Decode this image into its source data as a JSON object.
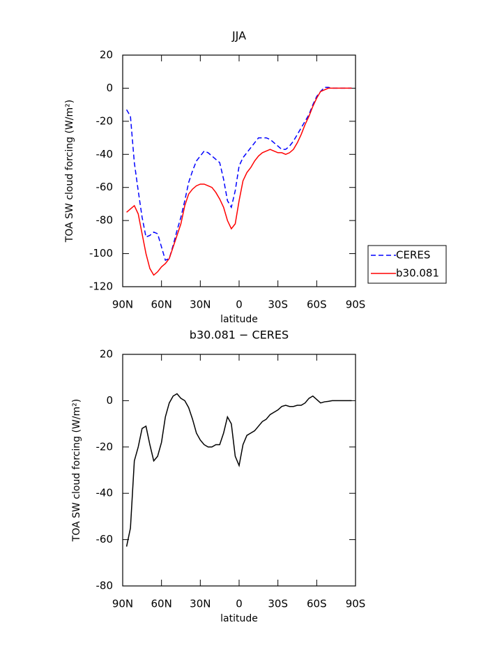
{
  "chart_data": [
    {
      "type": "line",
      "title": "JJA",
      "x_label": "latitude",
      "y_label": "TOA SW cloud forcing (W/m²)",
      "x": [
        87,
        84,
        81,
        78,
        75,
        72,
        69,
        66,
        63,
        60,
        57,
        54,
        51,
        48,
        45,
        42,
        39,
        36,
        33,
        30,
        27,
        24,
        21,
        18,
        15,
        12,
        9,
        6,
        3,
        0,
        -3,
        -6,
        -9,
        -12,
        -15,
        -18,
        -21,
        -24,
        -27,
        -30,
        -33,
        -36,
        -39,
        -42,
        -45,
        -48,
        -51,
        -54,
        -57,
        -60,
        -63,
        -66,
        -69,
        -72,
        -75,
        -78,
        -81,
        -84,
        -87
      ],
      "series": [
        {
          "name": "CERES",
          "color": "#0000ff",
          "linestyle": "dashed",
          "values": [
            -13,
            -17,
            -45,
            -62,
            -78,
            -90,
            -89,
            -87,
            -88,
            -96,
            -104,
            -103,
            -95,
            -86,
            -78,
            -68,
            -57,
            -50,
            -44,
            -41,
            -38,
            -39,
            -41,
            -43,
            -45,
            -55,
            -68,
            -72,
            -62,
            -47,
            -42,
            -39,
            -36,
            -33,
            -30,
            -30,
            -30,
            -31,
            -33,
            -35,
            -37,
            -37,
            -35,
            -32,
            -28,
            -24,
            -20,
            -16,
            -10,
            -5,
            -2,
            0.5,
            0.5,
            0,
            0,
            0,
            0,
            0,
            0
          ]
        },
        {
          "name": "b30.081",
          "color": "#ff0000",
          "linestyle": "solid",
          "values": [
            -75,
            -73,
            -71,
            -76,
            -88,
            -100,
            -109,
            -113,
            -111,
            -108,
            -106,
            -103,
            -96,
            -89,
            -82,
            -71,
            -64,
            -61,
            -59,
            -58,
            -58,
            -59,
            -60,
            -63,
            -67,
            -72,
            -80,
            -85,
            -82,
            -68,
            -56,
            -51,
            -48,
            -44,
            -41,
            -39,
            -38,
            -37,
            -38,
            -39,
            -39,
            -40,
            -39,
            -37,
            -33,
            -28,
            -22,
            -17,
            -11,
            -6,
            -2,
            -1,
            0,
            0,
            0,
            0,
            0,
            0,
            0
          ]
        }
      ],
      "xlim": [
        90,
        -90
      ],
      "xticks": [
        {
          "value": 90,
          "label": "90N"
        },
        {
          "value": 60,
          "label": "60N"
        },
        {
          "value": 30,
          "label": "30N"
        },
        0,
        {
          "value": -30,
          "label": "30S"
        },
        {
          "value": -60,
          "label": "60S"
        },
        {
          "value": -90,
          "label": "90S"
        }
      ],
      "ylim": [
        -120,
        20
      ],
      "yticks": [
        20,
        0,
        -20,
        -40,
        -60,
        -80,
        -100,
        -120
      ],
      "legend": "outside-right"
    },
    {
      "type": "line",
      "title": "b30.081 − CERES",
      "x_label": "latitude",
      "y_label": "TOA SW cloud forcing (W/m²)",
      "x": [
        87,
        84,
        81,
        78,
        75,
        72,
        69,
        66,
        63,
        60,
        57,
        54,
        51,
        48,
        45,
        42,
        39,
        36,
        33,
        30,
        27,
        24,
        21,
        18,
        15,
        12,
        9,
        6,
        3,
        0,
        -3,
        -6,
        -9,
        -12,
        -15,
        -18,
        -21,
        -24,
        -27,
        -30,
        -33,
        -36,
        -39,
        -42,
        -45,
        -48,
        -51,
        -54,
        -57,
        -60,
        -63,
        -66,
        -69,
        -72,
        -75,
        -78,
        -81,
        -84,
        -87
      ],
      "values": [
        -63,
        -55,
        -26,
        -20,
        -12,
        -11,
        -19,
        -26,
        -24,
        -18,
        -7,
        -1,
        2,
        3,
        1,
        0,
        -3,
        -8,
        -14,
        -17,
        -19,
        -20,
        -20,
        -19,
        -19,
        -14,
        -7,
        -10,
        -24,
        -28,
        -19,
        -15,
        -14,
        -13,
        -11,
        -9,
        -8,
        -6,
        -5,
        -4,
        -2.5,
        -2,
        -2.5,
        -2.5,
        -2,
        -2,
        -1,
        1,
        2,
        0.5,
        -1,
        -0.5,
        -0.3,
        0,
        0,
        0,
        0,
        0,
        0
      ],
      "color": "#000000",
      "xlim": [
        90,
        -90
      ],
      "xticks": [
        {
          "value": 90,
          "label": "90N"
        },
        {
          "value": 60,
          "label": "60N"
        },
        {
          "value": 30,
          "label": "30N"
        },
        0,
        {
          "value": -30,
          "label": "30S"
        },
        {
          "value": -60,
          "label": "60S"
        },
        {
          "value": -90,
          "label": "90S"
        }
      ],
      "ylim": [
        -80,
        20
      ],
      "yticks": [
        20,
        0,
        -20,
        -40,
        -60,
        -80
      ]
    }
  ]
}
